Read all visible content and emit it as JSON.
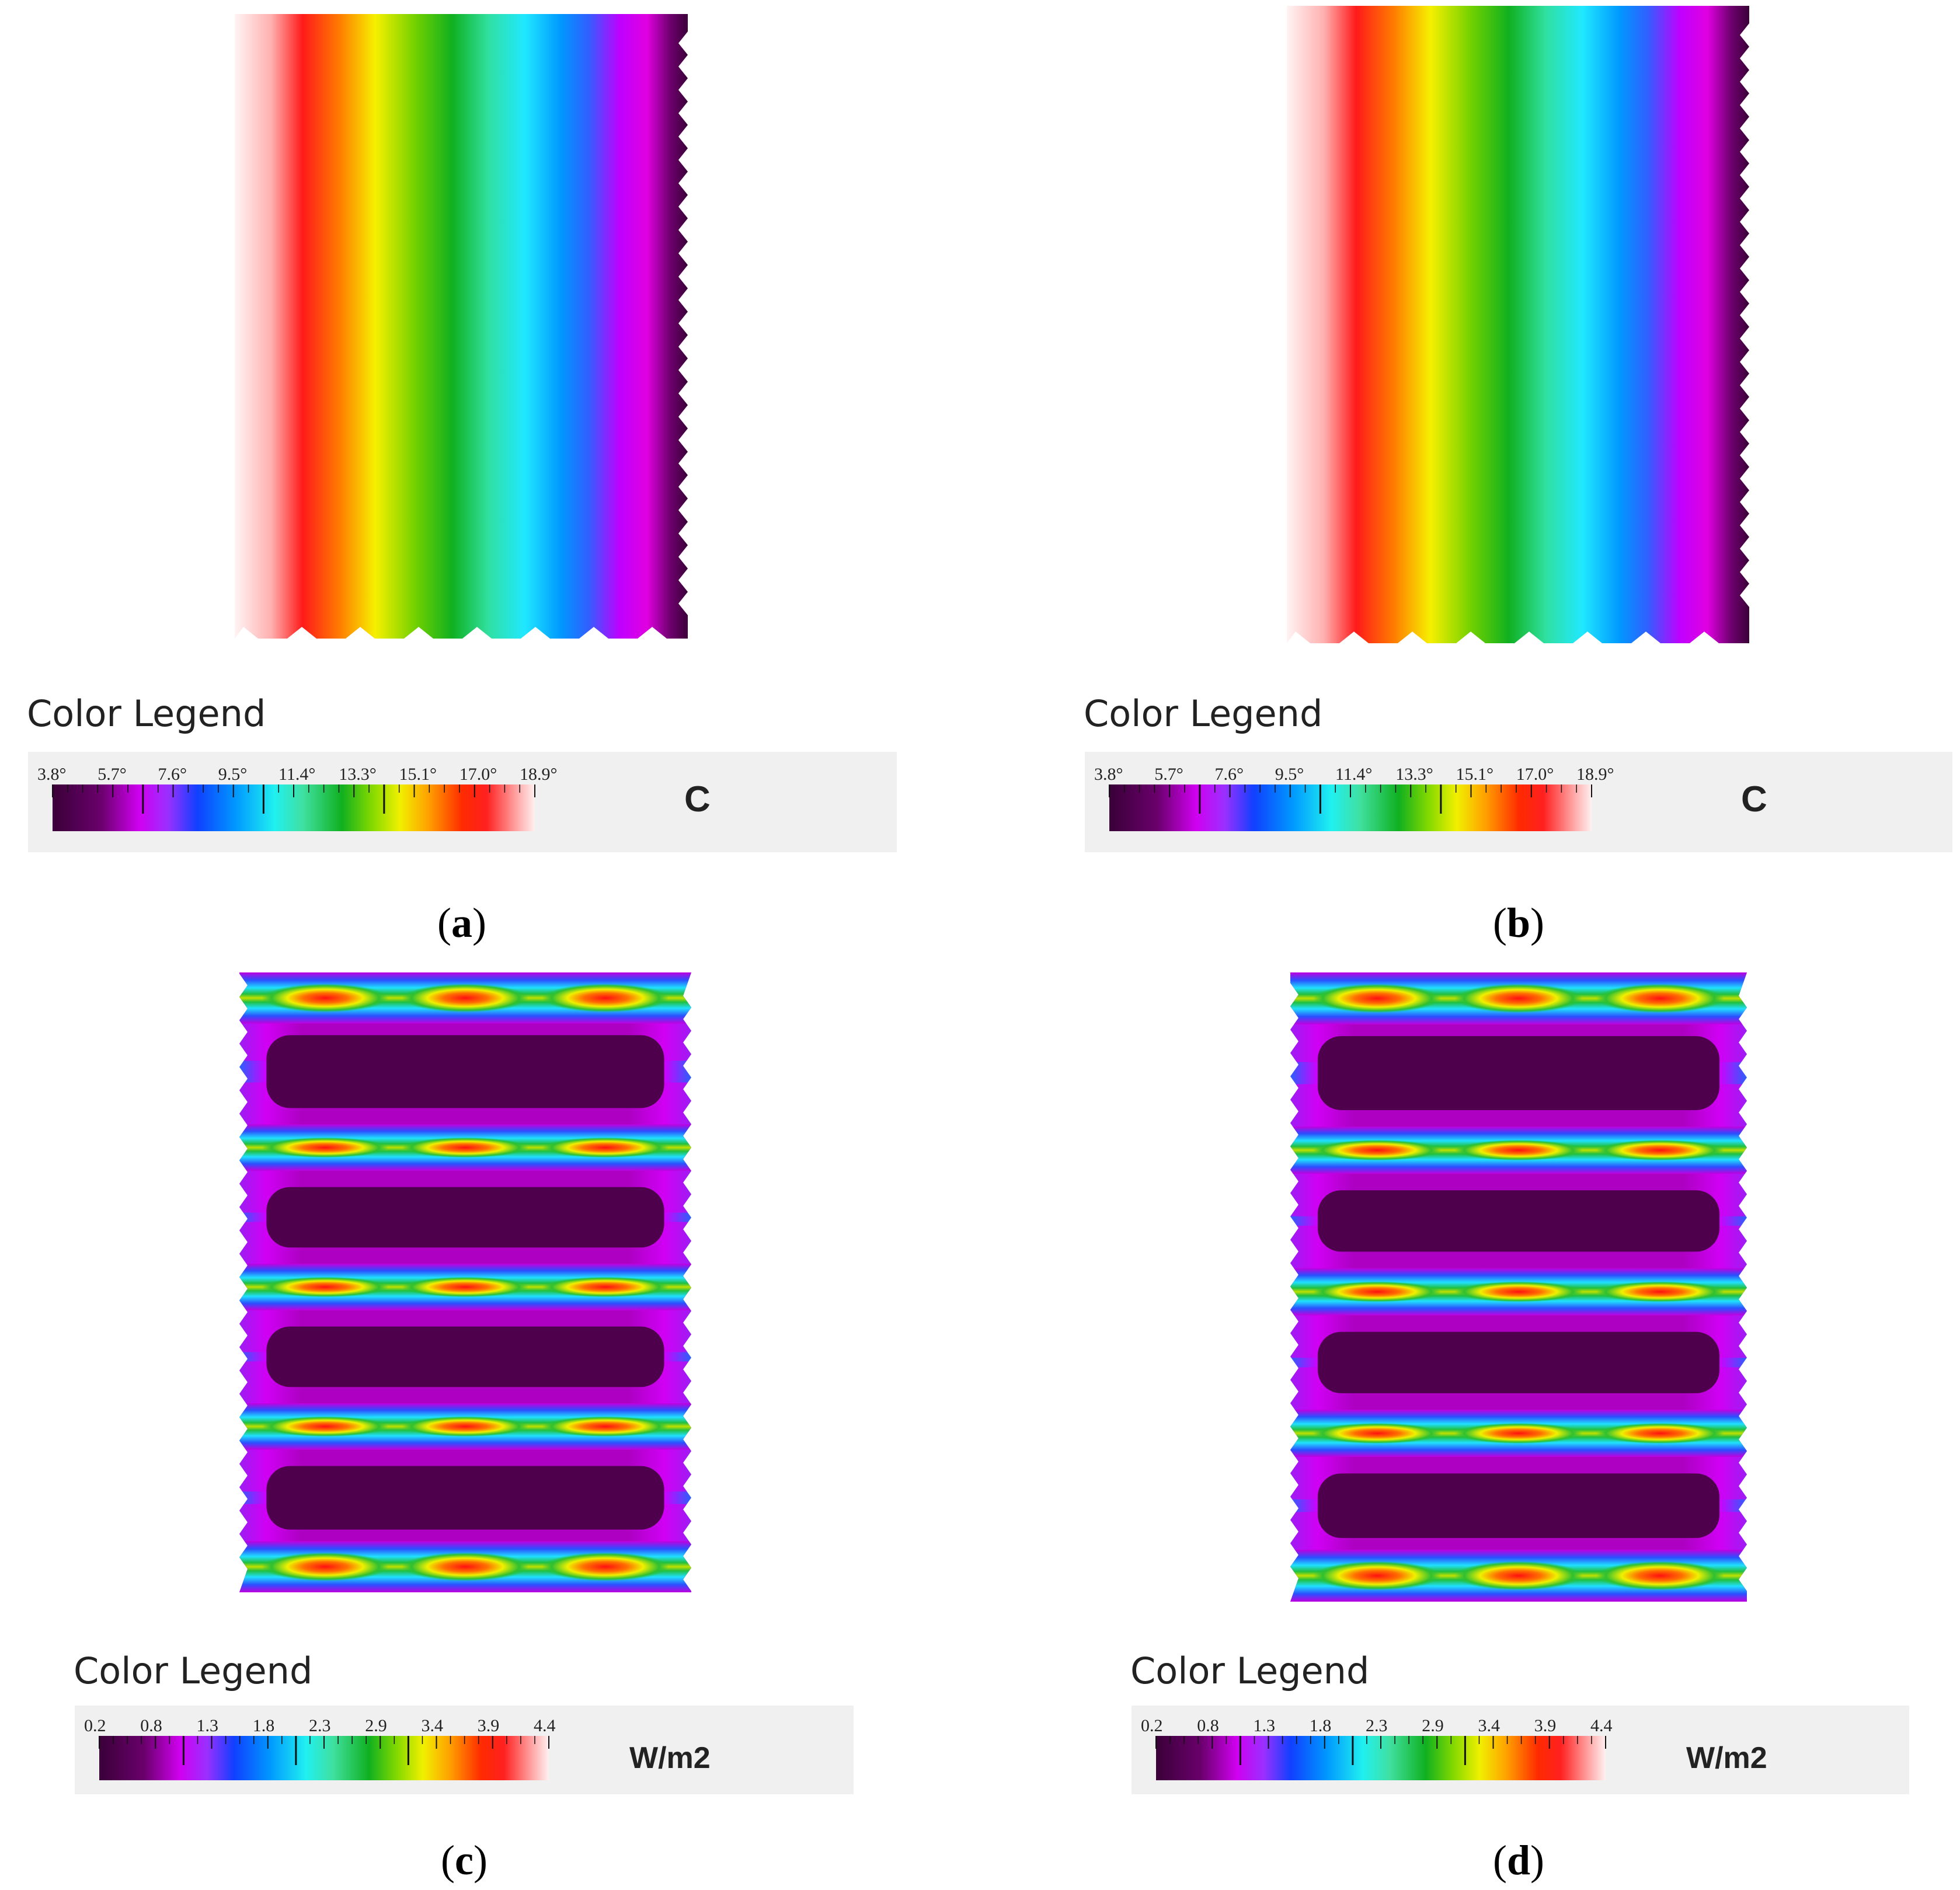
{
  "colors": {
    "scale": [
      "#3b0039",
      "#5a005f",
      "#b000c8",
      "#e000ff",
      "#7a40ff",
      "#2f55ff",
      "#0090ff",
      "#20e0ff",
      "#40e0a0",
      "#10c020",
      "#70d000",
      "#c0e000",
      "#f0f000",
      "#ffa000",
      "#ff3000",
      "#ff2020",
      "#ff9a9a",
      "#fff0f0"
    ],
    "legend_bg": "#f0f0f0"
  },
  "panels": [
    {
      "caption_open": "(",
      "caption_letter": "a",
      "caption_close": ")",
      "legend_title": "Color Legend",
      "unit": "C",
      "tick_labels": [
        "3.8°",
        "5.7°",
        "7.6°",
        "9.5°",
        "11.4°",
        "13.3°",
        "15.1°",
        "17.0°",
        "18.9°"
      ],
      "field": "temperature"
    },
    {
      "caption_open": "(",
      "caption_letter": "b",
      "caption_close": ")",
      "legend_title": "Color Legend",
      "unit": "C",
      "tick_labels": [
        "3.8°",
        "5.7°",
        "7.6°",
        "9.5°",
        "11.4°",
        "13.3°",
        "15.1°",
        "17.0°",
        "18.9°"
      ],
      "field": "temperature"
    },
    {
      "caption_open": "(",
      "caption_letter": "c",
      "caption_close": ")",
      "legend_title": "Color Legend",
      "unit": "W/m2",
      "tick_labels": [
        "0.2",
        "0.8",
        "1.3",
        "1.8",
        "2.3",
        "2.9",
        "3.4",
        "3.9",
        "4.4"
      ],
      "field": "heat_flux"
    },
    {
      "caption_open": "(",
      "caption_letter": "d",
      "caption_close": ")",
      "legend_title": "Color Legend",
      "unit": "W/m2",
      "tick_labels": [
        "0.2",
        "0.8",
        "1.3",
        "1.8",
        "2.3",
        "2.9",
        "3.4",
        "3.9",
        "4.4"
      ],
      "field": "heat_flux"
    }
  ]
}
